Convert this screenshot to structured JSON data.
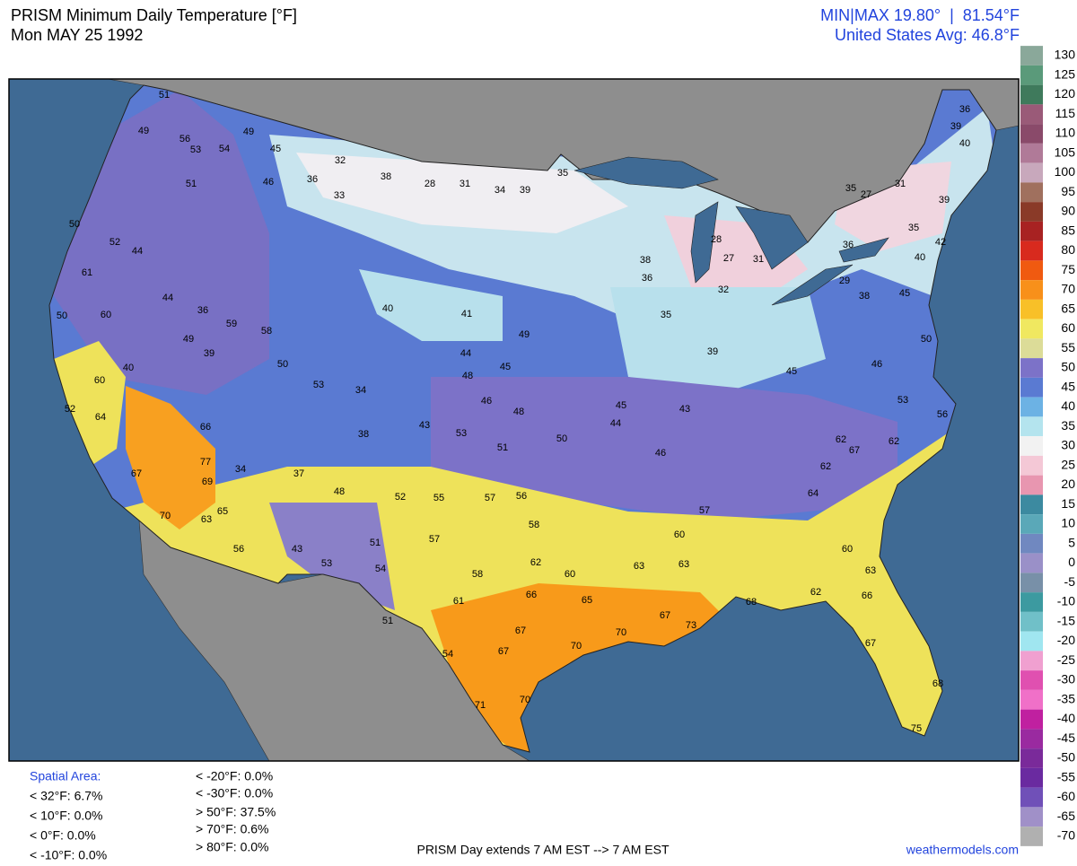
{
  "header": {
    "title": "PRISM Minimum Daily Temperature [°F]",
    "date": "Mon MAY 25 1992",
    "minmax": "MIN|MAX 19.80°  |  81.54°F",
    "average": "United States Avg: 46.8°F"
  },
  "colorbar": {
    "ticks": [
      130,
      125,
      120,
      115,
      110,
      105,
      100,
      95,
      90,
      85,
      80,
      75,
      70,
      65,
      60,
      55,
      50,
      45,
      40,
      35,
      30,
      25,
      20,
      15,
      10,
      5,
      0,
      -5,
      -10,
      -15,
      -20,
      -25,
      -30,
      -35,
      -40,
      -45,
      -50,
      -55,
      -60,
      -65,
      -70
    ],
    "colors": [
      "#8aa89a",
      "#5a9a7a",
      "#3f7a5c",
      "#9a5a78",
      "#8a4a6a",
      "#b07a98",
      "#c8a8bc",
      "#a0705e",
      "#8a3a28",
      "#a82222",
      "#d82a1e",
      "#f05a10",
      "#f8901a",
      "#f8c028",
      "#f0e860",
      "#dcdc98",
      "#7c72c8",
      "#5a7ad2",
      "#6cb2e4",
      "#b4e4ee",
      "#f2f2f2",
      "#f4c8d6",
      "#e896b0",
      "#3c8aa0",
      "#5aa8b8",
      "#7088c0",
      "#9a90c8",
      "#7890a8",
      "#3c9aa0",
      "#70c0c8",
      "#a0e6f0",
      "#f0a0d0",
      "#e050b0",
      "#f070c8",
      "#c020a0",
      "#9a2aa0",
      "#7a2a9a",
      "#6a2aa0",
      "#7050b8",
      "#a090c8",
      "#b0b0b0"
    ]
  },
  "stations": {
    "values": [
      51,
      49,
      56,
      53,
      51,
      54,
      49,
      45,
      46,
      32,
      36,
      33,
      38,
      28,
      31,
      34,
      39,
      35,
      50,
      52,
      44,
      61,
      50,
      60,
      44,
      36,
      49,
      39,
      59,
      58,
      50,
      53,
      34,
      38,
      43,
      60,
      64,
      40,
      52,
      67,
      69,
      77,
      66,
      70,
      63,
      65,
      56,
      34,
      37,
      48,
      43,
      53,
      52,
      55,
      57,
      56,
      58,
      57,
      51,
      54,
      58,
      61,
      66,
      65,
      67,
      67,
      70,
      70,
      70,
      71,
      51,
      54,
      62,
      60,
      40,
      44,
      45,
      48,
      46,
      48,
      53,
      51,
      50,
      41,
      49,
      45,
      44,
      46,
      43,
      38,
      36,
      28,
      27,
      31,
      32,
      35,
      39,
      45,
      57,
      60,
      63,
      63,
      73,
      67,
      68,
      62,
      63,
      66,
      67,
      68,
      75,
      62,
      67,
      62,
      62,
      64,
      60,
      35,
      27,
      31,
      39,
      35,
      42,
      36,
      29,
      38,
      40,
      45,
      50,
      46,
      53,
      56,
      36,
      39,
      40
    ]
  },
  "footer": {
    "spatial_label": "Spatial Area:",
    "stats": [
      "< 32°F: 6.7%",
      "< 10°F: 0.0%",
      "< 0°F: 0.0%",
      "< -10°F: 0.0%",
      "< -20°F: 0.0%",
      "< -30°F: 0.0%",
      "> 50°F: 37.5%",
      "> 70°F: 0.6%",
      "> 80°F: 0.0%"
    ],
    "note": "PRISM Day extends 7 AM EST --> 7 AM EST",
    "credit": "weathermodels.com"
  }
}
